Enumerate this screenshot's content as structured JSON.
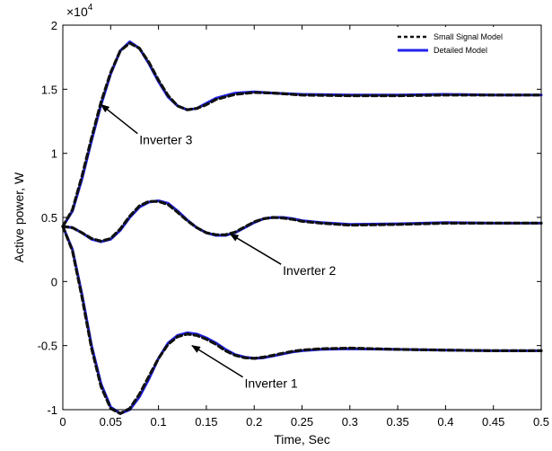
{
  "chart_data": {
    "type": "line",
    "title": "",
    "xlabel": "Time, Sec",
    "ylabel": "Active power, W",
    "exponent_label": "×10",
    "exponent_power": "4",
    "xlim": [
      0,
      0.5
    ],
    "ylim": [
      -1,
      2
    ],
    "xticks": [
      "0",
      "0.05",
      "0.1",
      "0.15",
      "0.2",
      "0.25",
      "0.3",
      "0.35",
      "0.4",
      "0.45",
      "0.5"
    ],
    "yticks": [
      "-1",
      "-0.5",
      "0",
      "0.5",
      "1",
      "1.5",
      "2"
    ],
    "legend": {
      "position": "top-right",
      "entries": [
        "Small Signal Model",
        "Detailed Model"
      ]
    },
    "series": [
      {
        "name": "Detailed Model",
        "color": "#2222ee",
        "style": "solid",
        "curves": [
          {
            "label": "Inverter 3",
            "x": [
              0,
              0.01,
              0.02,
              0.03,
              0.04,
              0.05,
              0.06,
              0.07,
              0.08,
              0.09,
              0.1,
              0.11,
              0.12,
              0.13,
              0.14,
              0.15,
              0.16,
              0.18,
              0.2,
              0.22,
              0.25,
              0.3,
              0.35,
              0.4,
              0.45,
              0.5
            ],
            "y": [
              0.43,
              0.55,
              0.8,
              1.1,
              1.38,
              1.62,
              1.8,
              1.87,
              1.82,
              1.7,
              1.56,
              1.44,
              1.37,
              1.34,
              1.35,
              1.39,
              1.43,
              1.47,
              1.48,
              1.47,
              1.46,
              1.455,
              1.455,
              1.46,
              1.455,
              1.455
            ]
          },
          {
            "label": "Inverter 2",
            "x": [
              0,
              0.01,
              0.02,
              0.03,
              0.04,
              0.05,
              0.06,
              0.07,
              0.08,
              0.09,
              0.1,
              0.11,
              0.12,
              0.13,
              0.14,
              0.15,
              0.16,
              0.17,
              0.18,
              0.19,
              0.2,
              0.21,
              0.22,
              0.23,
              0.24,
              0.25,
              0.27,
              0.3,
              0.35,
              0.4,
              0.45,
              0.5
            ],
            "y": [
              0.43,
              0.42,
              0.38,
              0.33,
              0.31,
              0.33,
              0.4,
              0.5,
              0.58,
              0.62,
              0.63,
              0.61,
              0.55,
              0.48,
              0.42,
              0.38,
              0.36,
              0.36,
              0.38,
              0.42,
              0.46,
              0.49,
              0.5,
              0.5,
              0.49,
              0.475,
              0.46,
              0.445,
              0.45,
              0.46,
              0.455,
              0.455
            ]
          },
          {
            "label": "Inverter 1",
            "x": [
              0,
              0.01,
              0.02,
              0.03,
              0.04,
              0.05,
              0.06,
              0.07,
              0.08,
              0.09,
              0.1,
              0.11,
              0.12,
              0.13,
              0.14,
              0.15,
              0.16,
              0.17,
              0.18,
              0.19,
              0.2,
              0.21,
              0.22,
              0.23,
              0.24,
              0.25,
              0.27,
              0.3,
              0.35,
              0.4,
              0.45,
              0.5
            ],
            "y": [
              0.43,
              0.25,
              -0.1,
              -0.5,
              -0.8,
              -0.98,
              -1.03,
              -1.0,
              -0.9,
              -0.76,
              -0.6,
              -0.48,
              -0.42,
              -0.4,
              -0.41,
              -0.44,
              -0.48,
              -0.53,
              -0.57,
              -0.59,
              -0.6,
              -0.595,
              -0.58,
              -0.565,
              -0.55,
              -0.54,
              -0.53,
              -0.525,
              -0.53,
              -0.535,
              -0.54,
              -0.54
            ]
          }
        ]
      },
      {
        "name": "Small Signal Model",
        "color": "#111111",
        "style": "dashed",
        "curves": [
          {
            "label": "Inverter 3",
            "x": [
              0,
              0.01,
              0.02,
              0.03,
              0.04,
              0.05,
              0.06,
              0.07,
              0.08,
              0.09,
              0.1,
              0.11,
              0.12,
              0.13,
              0.14,
              0.15,
              0.16,
              0.18,
              0.2,
              0.22,
              0.25,
              0.3,
              0.35,
              0.4,
              0.45,
              0.5
            ],
            "y": [
              0.43,
              0.56,
              0.82,
              1.12,
              1.4,
              1.63,
              1.8,
              1.86,
              1.82,
              1.71,
              1.57,
              1.45,
              1.37,
              1.34,
              1.35,
              1.38,
              1.42,
              1.46,
              1.475,
              1.47,
              1.455,
              1.45,
              1.45,
              1.455,
              1.455,
              1.455
            ]
          },
          {
            "label": "Inverter 2",
            "x": [
              0,
              0.01,
              0.02,
              0.03,
              0.04,
              0.05,
              0.06,
              0.07,
              0.08,
              0.09,
              0.1,
              0.11,
              0.12,
              0.13,
              0.14,
              0.15,
              0.16,
              0.17,
              0.18,
              0.19,
              0.2,
              0.21,
              0.22,
              0.23,
              0.24,
              0.25,
              0.27,
              0.3,
              0.35,
              0.4,
              0.45,
              0.5
            ],
            "y": [
              0.43,
              0.42,
              0.38,
              0.335,
              0.315,
              0.335,
              0.41,
              0.51,
              0.59,
              0.625,
              0.625,
              0.6,
              0.54,
              0.475,
              0.42,
              0.38,
              0.365,
              0.365,
              0.385,
              0.425,
              0.465,
              0.49,
              0.5,
              0.495,
              0.485,
              0.47,
              0.455,
              0.44,
              0.445,
              0.455,
              0.455,
              0.455
            ]
          },
          {
            "label": "Inverter 1",
            "x": [
              0,
              0.01,
              0.02,
              0.03,
              0.04,
              0.05,
              0.06,
              0.07,
              0.08,
              0.09,
              0.1,
              0.11,
              0.12,
              0.13,
              0.14,
              0.15,
              0.16,
              0.17,
              0.18,
              0.19,
              0.2,
              0.21,
              0.22,
              0.23,
              0.24,
              0.25,
              0.27,
              0.3,
              0.35,
              0.4,
              0.45,
              0.5
            ],
            "y": [
              0.43,
              0.24,
              -0.12,
              -0.52,
              -0.82,
              -0.99,
              -1.03,
              -0.99,
              -0.88,
              -0.74,
              -0.6,
              -0.49,
              -0.43,
              -0.41,
              -0.42,
              -0.45,
              -0.49,
              -0.54,
              -0.575,
              -0.595,
              -0.6,
              -0.59,
              -0.575,
              -0.56,
              -0.545,
              -0.535,
              -0.525,
              -0.52,
              -0.53,
              -0.535,
              -0.54,
              -0.54
            ]
          }
        ]
      }
    ],
    "annotations": [
      {
        "text": "Inverter 3",
        "target_x": 0.04,
        "target_y": 1.38,
        "text_x": 0.08,
        "text_y": 1.07
      },
      {
        "text": "Inverter 2",
        "target_x": 0.175,
        "target_y": 0.37,
        "text_x": 0.23,
        "text_y": 0.05
      },
      {
        "text": "Inverter 1",
        "target_x": 0.135,
        "target_y": -0.5,
        "text_x": 0.19,
        "text_y": -0.83
      }
    ]
  }
}
